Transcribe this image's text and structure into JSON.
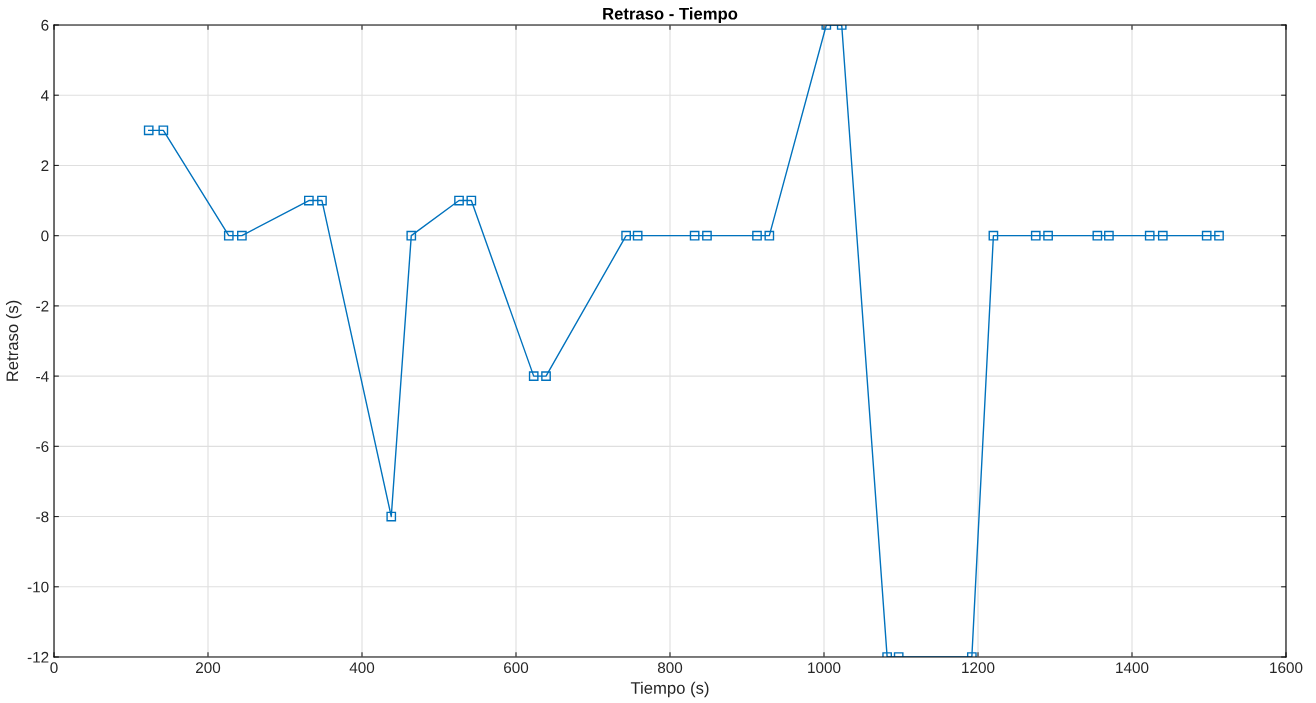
{
  "chart_data": {
    "type": "line",
    "title": "Retraso - Tiempo",
    "xlabel": "Tiempo (s)",
    "ylabel": "Retraso (s)",
    "x": [
      123,
      142,
      227,
      244,
      331,
      348,
      438,
      464,
      526,
      542,
      623,
      639,
      743,
      758,
      832,
      848,
      913,
      929,
      1003,
      1023,
      1082,
      1097,
      1192,
      1220,
      1275,
      1291,
      1355,
      1370,
      1423,
      1440,
      1497,
      1513
    ],
    "series": [
      {
        "color": "#0072bd",
        "values": [
          3,
          3,
          0,
          0,
          1,
          1,
          -8,
          0,
          1,
          1,
          -4,
          -4,
          0,
          0,
          0,
          0,
          0,
          0,
          6,
          6,
          -12,
          -12,
          -12,
          0,
          0,
          0,
          0,
          0,
          0,
          0,
          0,
          0
        ]
      }
    ],
    "xlim": [
      0,
      1600
    ],
    "xticks": [
      0,
      200,
      400,
      600,
      800,
      1000,
      1200,
      1400,
      1600
    ],
    "ylim": [
      -12,
      6
    ],
    "yticks": [
      -12,
      -10,
      -8,
      -6,
      -4,
      -2,
      0,
      2,
      4,
      6
    ],
    "grid": true,
    "marker": "square",
    "line_style": "solid"
  }
}
